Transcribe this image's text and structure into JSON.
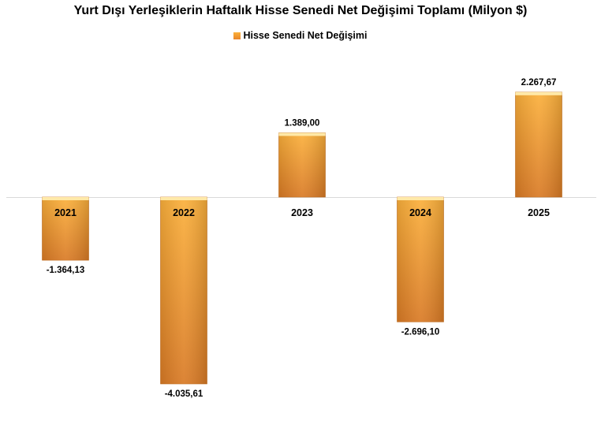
{
  "chart_data": {
    "type": "bar",
    "title": "Yurt Dışı Yerleşiklerin Haftalık Hisse Senedi Net Değişimi Toplamı (Milyon $)",
    "xlabel": "",
    "ylabel": "",
    "categories": [
      "2021",
      "2022",
      "2023",
      "2024",
      "2025"
    ],
    "series": [
      {
        "name": "Hisse Senedi Net Değişimi",
        "values": [
          -1364.13,
          -4035.61,
          1389.0,
          -2696.1,
          2267.67
        ],
        "labels": [
          "-1.364,13",
          "-4.035,61",
          "1.389,00",
          "-2.696,10",
          "2.267,67"
        ]
      }
    ],
    "legend_position": "top",
    "grid": false,
    "colors": {
      "bar_top": "#fbb03b",
      "bar_bottom": "#d97a25",
      "cap": "#ffe9a8",
      "axis": "#d9d9d9"
    }
  }
}
